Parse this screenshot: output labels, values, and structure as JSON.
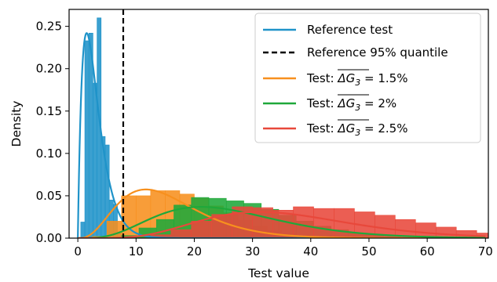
{
  "chart_data": {
    "type": "histogram",
    "xlabel": "Test value",
    "ylabel": "Density",
    "xlim": [
      -1.5,
      70.5
    ],
    "ylim": [
      0,
      0.27
    ],
    "xticks": [
      0,
      10,
      20,
      30,
      40,
      50,
      60,
      70
    ],
    "yticks": [
      0.0,
      0.05,
      0.1,
      0.15,
      0.2,
      0.25
    ],
    "ytick_labels": [
      "0.00",
      "0.05",
      "0.10",
      "0.15",
      "0.20",
      "0.25"
    ],
    "legend_position": "top-right",
    "reference_line": {
      "label": "Reference 95% quantile",
      "x": 7.8,
      "style": "dashed",
      "color": "#000000"
    },
    "series": [
      {
        "name": "Reference test",
        "color": "#1f93c9",
        "hist": {
          "start": 0.5,
          "width": 0.7,
          "heights": [
            0.019,
            0.233,
            0.242,
            0.183,
            0.26,
            0.12,
            0.11,
            0.045,
            0.04,
            0.006
          ]
        },
        "density_curve": {
          "kind": "gamma",
          "shape": 2,
          "scale": 1.52
        }
      },
      {
        "name": "Test: ΔG3 = 1.5%",
        "label_prefix": "Test: ",
        "label_math": "ΔG",
        "label_sub": "3",
        "label_suffix": " = 1.5%",
        "color": "#f7901e",
        "hist": {
          "start": 2.5,
          "width": 2.5,
          "heights": [
            0.002,
            0.02,
            0.05,
            0.05,
            0.056,
            0.056,
            0.052,
            0.047,
            0.038,
            0.03,
            0.021,
            0.014,
            0.009,
            0.005,
            0.003,
            0.001
          ]
        },
        "density_curve": {
          "kind": "gamma",
          "shape": 4,
          "scale": 3.9
        }
      },
      {
        "name": "Test: ΔG3 = 2%",
        "label_prefix": "Test: ",
        "label_math": "ΔG",
        "label_sub": "3",
        "label_suffix": " = 2%",
        "color": "#1fa83a",
        "hist": {
          "start": 7.5,
          "width": 3,
          "heights": [
            0.003,
            0.012,
            0.022,
            0.039,
            0.048,
            0.047,
            0.044,
            0.041,
            0.034,
            0.027,
            0.02,
            0.014,
            0.01,
            0.006,
            0.004,
            0.002,
            0.001
          ]
        },
        "density_curve": {
          "kind": "gamma",
          "shape": 5,
          "scale": 5.3
        }
      },
      {
        "name": "Test: ΔG3 = 2.5%",
        "label_prefix": "Test: ",
        "label_math": "ΔG",
        "label_sub": "3",
        "label_suffix": " = 2.5%",
        "color": "#e8483b",
        "hist": {
          "start": 12.5,
          "width": 3.5,
          "heights": [
            0.004,
            0.01,
            0.02,
            0.028,
            0.037,
            0.036,
            0.033,
            0.037,
            0.035,
            0.035,
            0.031,
            0.027,
            0.022,
            0.018,
            0.013,
            0.009,
            0.006
          ]
        },
        "density_curve": {
          "kind": "gamma",
          "shape": 7,
          "scale": 5.2
        }
      }
    ]
  }
}
